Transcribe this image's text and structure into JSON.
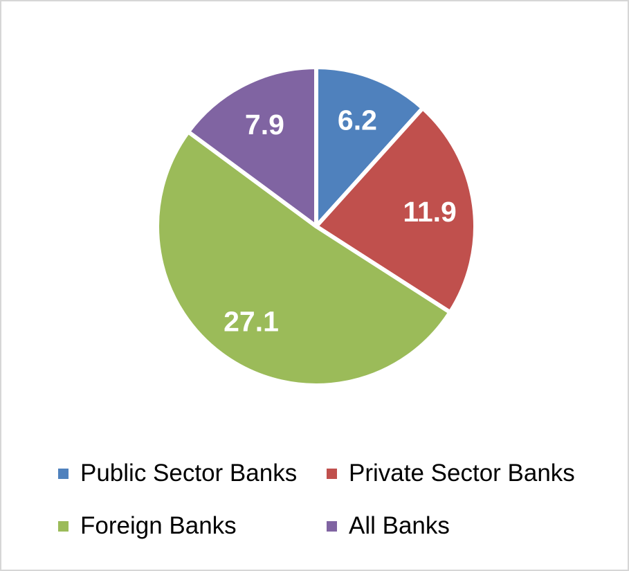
{
  "frame": {
    "background": "#FFFFFF",
    "border_color": "#D6D6D6"
  },
  "chart_data": {
    "type": "pie",
    "categories": [
      "Public Sector Banks",
      "Private Sector Banks",
      "Foreign Banks",
      "All Banks"
    ],
    "values": [
      6.2,
      11.9,
      27.1,
      7.9
    ],
    "data_labels": [
      "6.2",
      "11.9",
      "27.1",
      "7.9"
    ],
    "colors": [
      "#4F81BD",
      "#C0504D",
      "#9BBB59",
      "#8064A2"
    ],
    "total": 53.1,
    "label_color": "#FFFFFF",
    "slice_border_color": "#FFFFFF",
    "legend_position": "bottom",
    "legend_text_color": "#000000",
    "start_angle": "12 o'clock",
    "direction": "clockwise",
    "grid": "off"
  }
}
